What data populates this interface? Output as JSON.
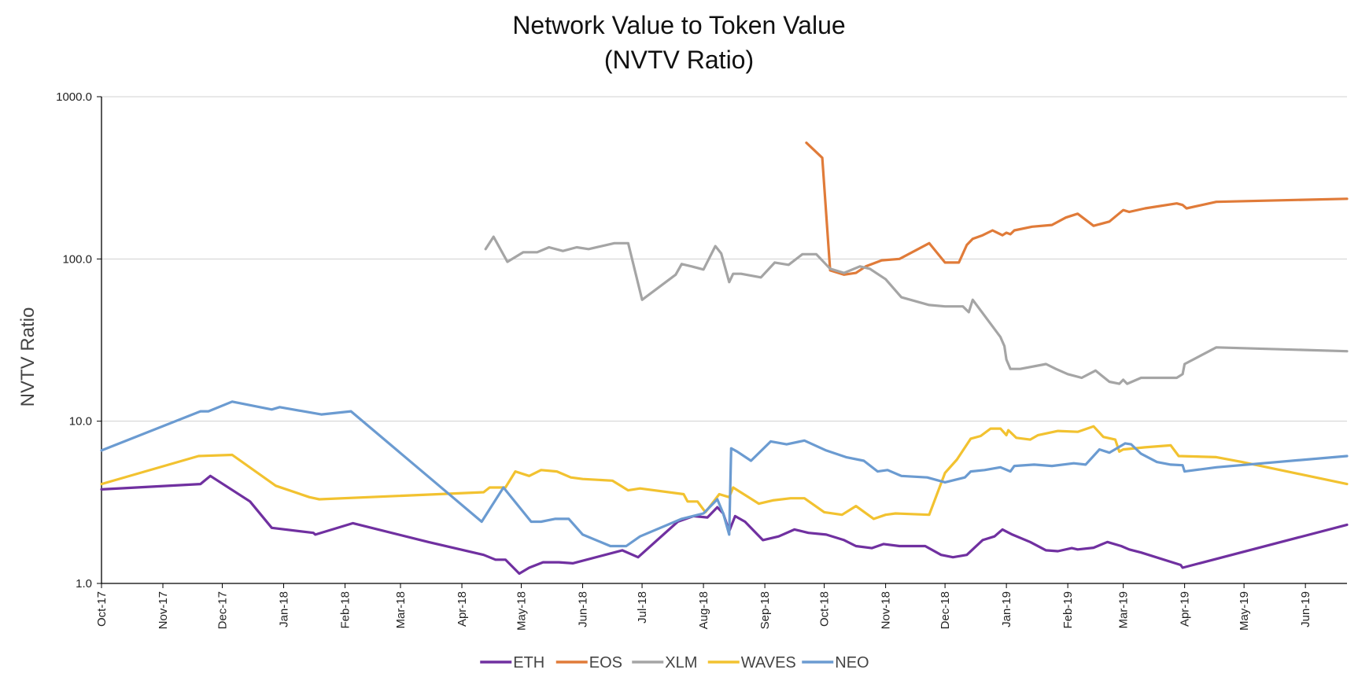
{
  "chart_data": {
    "type": "line",
    "title": "Network Value to Token Value",
    "subtitle": "(NVTV Ratio)",
    "xlabel": "",
    "ylabel": "NVTV Ratio",
    "yscale": "log",
    "ylim": [
      1.0,
      1000.0
    ],
    "y_ticks": [
      1.0,
      10.0,
      100.0,
      1000.0
    ],
    "y_tick_labels": [
      "1.0",
      "10.0",
      "100.0",
      "1000.0"
    ],
    "x_range": [
      "2017-10-01",
      "2019-06-22"
    ],
    "x_ticks": [
      "2017-10-01",
      "2017-11-01",
      "2017-12-01",
      "2018-01-01",
      "2018-02-01",
      "2018-03-01",
      "2018-04-01",
      "2018-05-01",
      "2018-06-01",
      "2018-07-01",
      "2018-08-01",
      "2018-09-01",
      "2018-10-01",
      "2018-11-01",
      "2018-12-01",
      "2019-01-01",
      "2019-02-01",
      "2019-03-01",
      "2019-04-01",
      "2019-05-01",
      "2019-06-01"
    ],
    "x_tick_labels": [
      "Oct-17",
      "Nov-17",
      "Dec-17",
      "Jan-18",
      "Feb-18",
      "Mar-18",
      "Apr-18",
      "May-18",
      "Jun-18",
      "Jul-18",
      "Aug-18",
      "Sep-18",
      "Oct-18",
      "Nov-18",
      "Dec-18",
      "Jan-19",
      "Feb-19",
      "Mar-19",
      "Apr-19",
      "May-19",
      "Jun-19"
    ],
    "grid": "horizontal",
    "legend_position": "bottom",
    "series": [
      {
        "name": "ETH",
        "color": "#7030a0",
        "points": [
          [
            "2017-10-01",
            3.8
          ],
          [
            "2017-11-20",
            4.1
          ],
          [
            "2017-11-25",
            4.6
          ],
          [
            "2017-12-15",
            3.2
          ],
          [
            "2017-12-26",
            2.2
          ],
          [
            "2018-01-16",
            2.05
          ],
          [
            "2018-01-17",
            2.0
          ],
          [
            "2018-02-05",
            2.35
          ],
          [
            "2018-03-15",
            1.8
          ],
          [
            "2018-04-12",
            1.5
          ],
          [
            "2018-04-18",
            1.4
          ],
          [
            "2018-04-23",
            1.4
          ],
          [
            "2018-04-30",
            1.15
          ],
          [
            "2018-05-05",
            1.25
          ],
          [
            "2018-05-12",
            1.35
          ],
          [
            "2018-05-20",
            1.35
          ],
          [
            "2018-05-27",
            1.33
          ],
          [
            "2018-06-21",
            1.6
          ],
          [
            "2018-06-29",
            1.45
          ],
          [
            "2018-07-19",
            2.4
          ],
          [
            "2018-07-27",
            2.6
          ],
          [
            "2018-08-03",
            2.55
          ],
          [
            "2018-08-08",
            2.95
          ],
          [
            "2018-08-11",
            2.7
          ],
          [
            "2018-08-14",
            2.1
          ],
          [
            "2018-08-17",
            2.6
          ],
          [
            "2018-08-22",
            2.4
          ],
          [
            "2018-08-31",
            1.85
          ],
          [
            "2018-09-08",
            1.95
          ],
          [
            "2018-09-16",
            2.15
          ],
          [
            "2018-09-23",
            2.05
          ],
          [
            "2018-10-02",
            2.0
          ],
          [
            "2018-10-11",
            1.85
          ],
          [
            "2018-10-17",
            1.7
          ],
          [
            "2018-10-25",
            1.65
          ],
          [
            "2018-10-31",
            1.75
          ],
          [
            "2018-11-08",
            1.7
          ],
          [
            "2018-11-21",
            1.7
          ],
          [
            "2018-11-29",
            1.5
          ],
          [
            "2018-12-05",
            1.45
          ],
          [
            "2018-12-12",
            1.5
          ],
          [
            "2018-12-20",
            1.85
          ],
          [
            "2018-12-26",
            1.95
          ],
          [
            "2018-12-30",
            2.15
          ],
          [
            "2019-01-04",
            2.0
          ],
          [
            "2019-01-13",
            1.8
          ],
          [
            "2019-01-21",
            1.6
          ],
          [
            "2019-01-27",
            1.58
          ],
          [
            "2019-02-03",
            1.65
          ],
          [
            "2019-02-06",
            1.62
          ],
          [
            "2019-02-14",
            1.66
          ],
          [
            "2019-02-21",
            1.8
          ],
          [
            "2019-02-28",
            1.7
          ],
          [
            "2019-03-04",
            1.62
          ],
          [
            "2019-03-10",
            1.55
          ],
          [
            "2019-03-30",
            1.3
          ],
          [
            "2019-03-31",
            1.25
          ],
          [
            "2019-06-22",
            2.3
          ]
        ]
      },
      {
        "name": "EOS",
        "color": "#e07b39",
        "points": [
          [
            "2018-09-22",
            520
          ],
          [
            "2018-09-30",
            420
          ],
          [
            "2018-10-04",
            85
          ],
          [
            "2018-10-11",
            80
          ],
          [
            "2018-10-17",
            82
          ],
          [
            "2018-10-22",
            90
          ],
          [
            "2018-10-30",
            98
          ],
          [
            "2018-11-08",
            100
          ],
          [
            "2018-11-23",
            125
          ],
          [
            "2018-12-01",
            95
          ],
          [
            "2018-12-08",
            95
          ],
          [
            "2018-12-12",
            122
          ],
          [
            "2018-12-15",
            133
          ],
          [
            "2018-12-20",
            140
          ],
          [
            "2018-12-25",
            150
          ],
          [
            "2018-12-30",
            140
          ],
          [
            "2019-01-01",
            145
          ],
          [
            "2019-01-03",
            142
          ],
          [
            "2019-01-05",
            150
          ],
          [
            "2019-01-14",
            158
          ],
          [
            "2019-01-24",
            162
          ],
          [
            "2019-01-31",
            180
          ],
          [
            "2019-02-06",
            190
          ],
          [
            "2019-02-14",
            160
          ],
          [
            "2019-02-22",
            170
          ],
          [
            "2019-03-01",
            200
          ],
          [
            "2019-03-04",
            195
          ],
          [
            "2019-03-12",
            205
          ],
          [
            "2019-03-28",
            220
          ],
          [
            "2019-03-31",
            215
          ],
          [
            "2019-04-02",
            205
          ],
          [
            "2019-04-17",
            225
          ],
          [
            "2019-06-22",
            235
          ]
        ]
      },
      {
        "name": "XLM",
        "color": "#a5a5a5",
        "points": [
          [
            "2018-04-13",
            115
          ],
          [
            "2018-04-17",
            137
          ],
          [
            "2018-04-24",
            96
          ],
          [
            "2018-05-02",
            110
          ],
          [
            "2018-05-09",
            110
          ],
          [
            "2018-05-15",
            118
          ],
          [
            "2018-05-22",
            112
          ],
          [
            "2018-05-29",
            118
          ],
          [
            "2018-06-04",
            115
          ],
          [
            "2018-06-17",
            125
          ],
          [
            "2018-06-24",
            125
          ],
          [
            "2018-07-01",
            56
          ],
          [
            "2018-07-18",
            80
          ],
          [
            "2018-07-21",
            93
          ],
          [
            "2018-07-26",
            90
          ],
          [
            "2018-08-01",
            86
          ],
          [
            "2018-08-07",
            120
          ],
          [
            "2018-08-10",
            108
          ],
          [
            "2018-08-14",
            72
          ],
          [
            "2018-08-16",
            81
          ],
          [
            "2018-08-20",
            81
          ],
          [
            "2018-08-30",
            77
          ],
          [
            "2018-09-06",
            95
          ],
          [
            "2018-09-13",
            92
          ],
          [
            "2018-09-20",
            107
          ],
          [
            "2018-09-27",
            107
          ],
          [
            "2018-10-04",
            87
          ],
          [
            "2018-10-11",
            82
          ],
          [
            "2018-10-19",
            90
          ],
          [
            "2018-10-24",
            87
          ],
          [
            "2018-11-01",
            75
          ],
          [
            "2018-11-09",
            58
          ],
          [
            "2018-11-23",
            52
          ],
          [
            "2018-12-01",
            51
          ],
          [
            "2018-12-10",
            51
          ],
          [
            "2018-12-13",
            47
          ],
          [
            "2018-12-15",
            56
          ],
          [
            "2018-12-26",
            37
          ],
          [
            "2018-12-29",
            33
          ],
          [
            "2018-12-31",
            29
          ],
          [
            "2019-01-01",
            24
          ],
          [
            "2019-01-03",
            21
          ],
          [
            "2019-01-08",
            21
          ],
          [
            "2019-01-21",
            22.5
          ],
          [
            "2019-01-26",
            21
          ],
          [
            "2019-02-01",
            19.5
          ],
          [
            "2019-02-08",
            18.5
          ],
          [
            "2019-02-15",
            20.5
          ],
          [
            "2019-02-22",
            17.5
          ],
          [
            "2019-02-27",
            17
          ],
          [
            "2019-03-01",
            18
          ],
          [
            "2019-03-03",
            17
          ],
          [
            "2019-03-10",
            18.5
          ],
          [
            "2019-03-28",
            18.5
          ],
          [
            "2019-03-31",
            19.5
          ],
          [
            "2019-04-01",
            22.5
          ],
          [
            "2019-04-17",
            28.5
          ],
          [
            "2019-06-22",
            27
          ]
        ]
      },
      {
        "name": "WAVES",
        "color": "#f2c230",
        "points": [
          [
            "2017-10-01",
            4.1
          ],
          [
            "2017-11-19",
            6.1
          ],
          [
            "2017-12-06",
            6.2
          ],
          [
            "2017-12-28",
            4.0
          ],
          [
            "2018-01-14",
            3.4
          ],
          [
            "2018-01-19",
            3.3
          ],
          [
            "2018-04-12",
            3.65
          ],
          [
            "2018-04-15",
            3.9
          ],
          [
            "2018-04-23",
            3.9
          ],
          [
            "2018-04-28",
            4.9
          ],
          [
            "2018-05-05",
            4.6
          ],
          [
            "2018-05-11",
            5.0
          ],
          [
            "2018-05-19",
            4.9
          ],
          [
            "2018-05-26",
            4.5
          ],
          [
            "2018-06-01",
            4.4
          ],
          [
            "2018-06-16",
            4.3
          ],
          [
            "2018-06-24",
            3.75
          ],
          [
            "2018-06-30",
            3.85
          ],
          [
            "2018-07-22",
            3.55
          ],
          [
            "2018-07-24",
            3.2
          ],
          [
            "2018-07-29",
            3.2
          ],
          [
            "2018-08-02",
            2.75
          ],
          [
            "2018-08-09",
            3.55
          ],
          [
            "2018-08-14",
            3.4
          ],
          [
            "2018-08-16",
            3.9
          ],
          [
            "2018-08-29",
            3.1
          ],
          [
            "2018-09-05",
            3.25
          ],
          [
            "2018-09-14",
            3.35
          ],
          [
            "2018-09-21",
            3.35
          ],
          [
            "2018-10-01",
            2.75
          ],
          [
            "2018-10-10",
            2.65
          ],
          [
            "2018-10-17",
            3.0
          ],
          [
            "2018-10-26",
            2.5
          ],
          [
            "2018-11-01",
            2.65
          ],
          [
            "2018-11-06",
            2.7
          ],
          [
            "2018-11-23",
            2.65
          ],
          [
            "2018-12-01",
            4.8
          ],
          [
            "2018-12-07",
            5.8
          ],
          [
            "2018-12-14",
            7.8
          ],
          [
            "2018-12-19",
            8.1
          ],
          [
            "2018-12-24",
            9.0
          ],
          [
            "2018-12-29",
            9.0
          ],
          [
            "2019-01-01",
            8.2
          ],
          [
            "2019-01-02",
            8.8
          ],
          [
            "2019-01-06",
            7.9
          ],
          [
            "2019-01-13",
            7.7
          ],
          [
            "2019-01-17",
            8.2
          ],
          [
            "2019-01-27",
            8.7
          ],
          [
            "2019-02-06",
            8.6
          ],
          [
            "2019-02-14",
            9.3
          ],
          [
            "2019-02-19",
            8.0
          ],
          [
            "2019-02-25",
            7.7
          ],
          [
            "2019-02-27",
            6.5
          ],
          [
            "2019-03-01",
            6.7
          ],
          [
            "2019-03-12",
            6.9
          ],
          [
            "2019-03-25",
            7.1
          ],
          [
            "2019-03-29",
            6.1
          ],
          [
            "2019-04-17",
            6.0
          ],
          [
            "2019-04-30",
            5.6
          ],
          [
            "2019-06-22",
            4.1
          ]
        ]
      },
      {
        "name": "NEO",
        "color": "#6b9bd1",
        "points": [
          [
            "2017-10-01",
            6.6
          ],
          [
            "2017-11-20",
            11.5
          ],
          [
            "2017-11-24",
            11.5
          ],
          [
            "2017-12-06",
            13.2
          ],
          [
            "2017-12-26",
            11.8
          ],
          [
            "2017-12-30",
            12.2
          ],
          [
            "2018-01-20",
            11.0
          ],
          [
            "2018-02-04",
            11.5
          ],
          [
            "2018-04-11",
            2.4
          ],
          [
            "2018-04-22",
            3.9
          ],
          [
            "2018-05-06",
            2.4
          ],
          [
            "2018-05-11",
            2.4
          ],
          [
            "2018-05-18",
            2.5
          ],
          [
            "2018-05-25",
            2.5
          ],
          [
            "2018-06-01",
            2.0
          ],
          [
            "2018-06-15",
            1.7
          ],
          [
            "2018-06-23",
            1.7
          ],
          [
            "2018-06-30",
            1.95
          ],
          [
            "2018-07-21",
            2.5
          ],
          [
            "2018-08-01",
            2.7
          ],
          [
            "2018-08-08",
            3.3
          ],
          [
            "2018-08-11",
            2.7
          ],
          [
            "2018-08-14",
            2.0
          ],
          [
            "2018-08-15",
            6.8
          ],
          [
            "2018-08-18",
            6.5
          ],
          [
            "2018-08-25",
            5.7
          ],
          [
            "2018-09-04",
            7.5
          ],
          [
            "2018-09-12",
            7.2
          ],
          [
            "2018-09-21",
            7.6
          ],
          [
            "2018-10-02",
            6.6
          ],
          [
            "2018-10-12",
            6.0
          ],
          [
            "2018-10-21",
            5.7
          ],
          [
            "2018-10-28",
            4.9
          ],
          [
            "2018-11-02",
            5.0
          ],
          [
            "2018-11-09",
            4.6
          ],
          [
            "2018-11-22",
            4.5
          ],
          [
            "2018-12-01",
            4.2
          ],
          [
            "2018-12-11",
            4.5
          ],
          [
            "2018-12-14",
            4.9
          ],
          [
            "2018-12-21",
            5.0
          ],
          [
            "2018-12-29",
            5.2
          ],
          [
            "2019-01-03",
            4.9
          ],
          [
            "2019-01-05",
            5.3
          ],
          [
            "2019-01-15",
            5.4
          ],
          [
            "2019-01-24",
            5.3
          ],
          [
            "2019-02-04",
            5.5
          ],
          [
            "2019-02-10",
            5.4
          ],
          [
            "2019-02-17",
            6.7
          ],
          [
            "2019-02-22",
            6.4
          ],
          [
            "2019-03-02",
            7.3
          ],
          [
            "2019-03-05",
            7.2
          ],
          [
            "2019-03-10",
            6.3
          ],
          [
            "2019-03-18",
            5.6
          ],
          [
            "2019-03-25",
            5.4
          ],
          [
            "2019-03-31",
            5.35
          ],
          [
            "2019-04-01",
            4.9
          ],
          [
            "2019-04-17",
            5.2
          ],
          [
            "2019-06-22",
            6.1
          ]
        ]
      }
    ]
  }
}
